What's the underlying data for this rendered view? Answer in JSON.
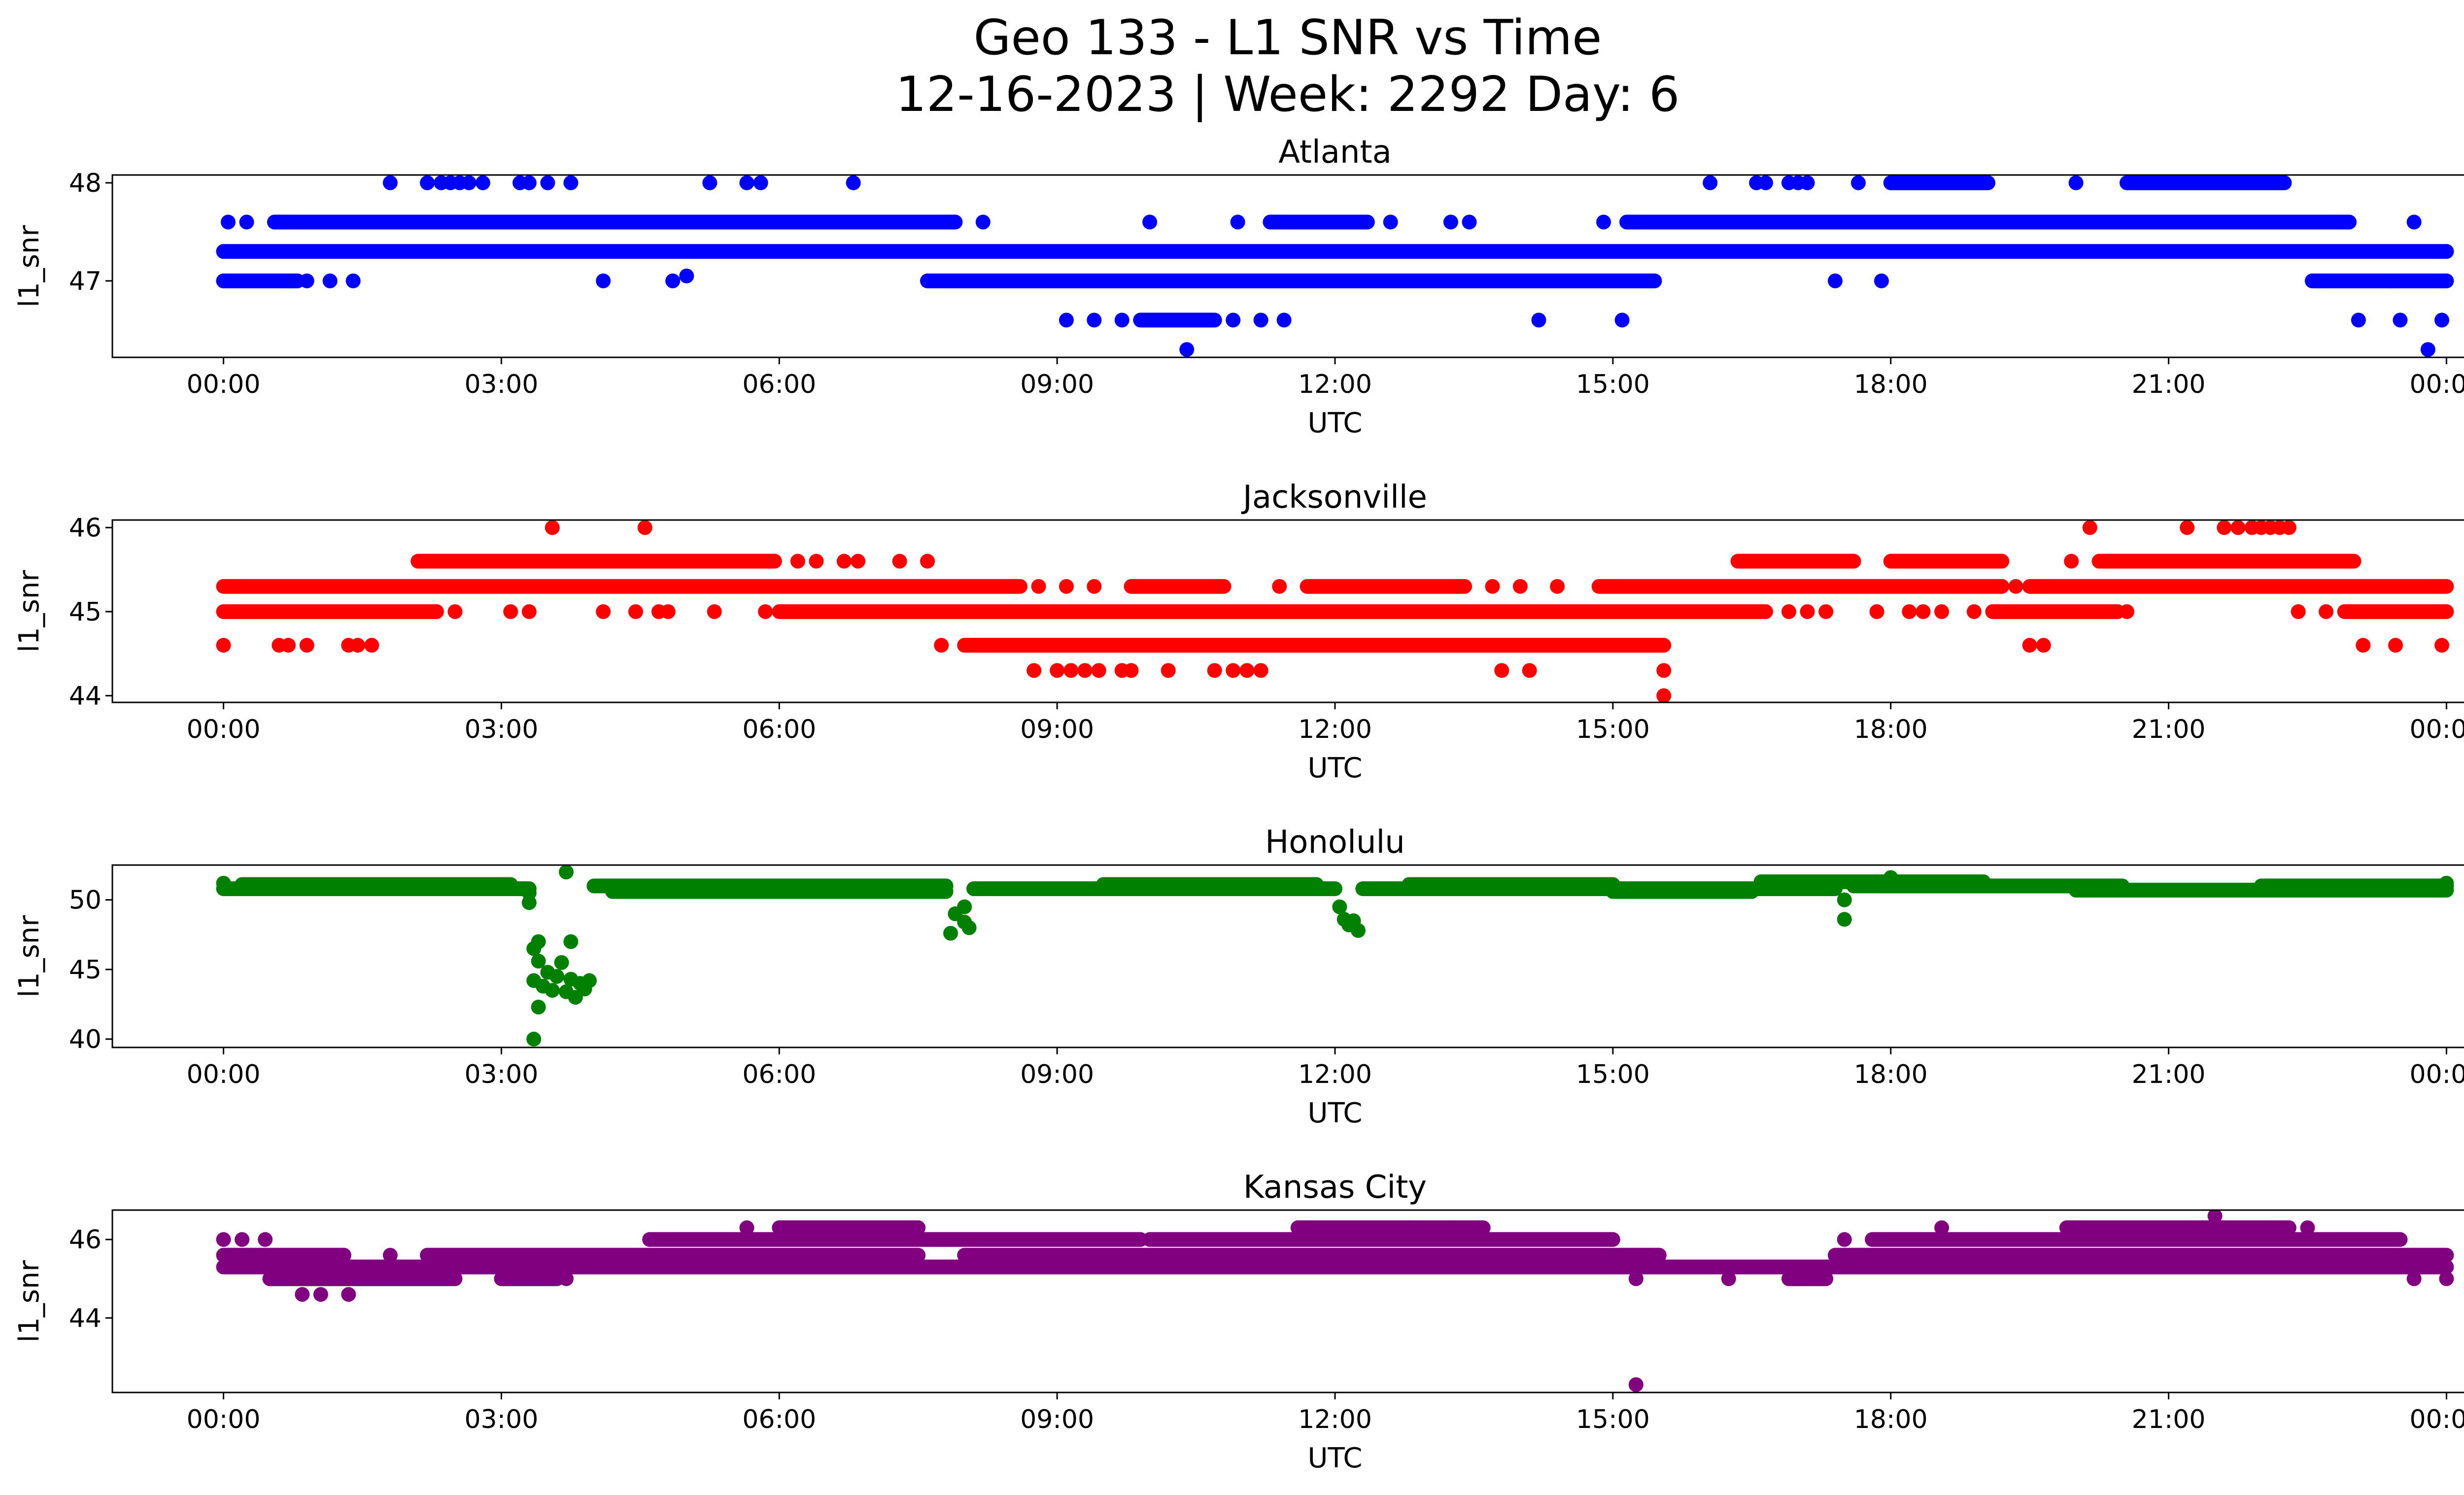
{
  "figure": {
    "title_line1": "Geo 133 - L1 SNR vs Time",
    "title_line2": "12-16-2023 | Week: 2292 Day: 6"
  },
  "chart_data": [
    {
      "type": "scatter",
      "title": "Atlanta",
      "xlabel": "UTC",
      "ylabel": "l1_snr",
      "color": "#0000ff",
      "xlim_hours": [
        -1.2,
        25.2
      ],
      "ylim": [
        46.22,
        48.08
      ],
      "xticks": [
        "00:00",
        "03:00",
        "06:00",
        "09:00",
        "12:00",
        "15:00",
        "18:00",
        "21:00",
        "00:00"
      ],
      "yticks": [
        {
          "value": 47,
          "label": "47"
        },
        {
          "value": 48,
          "label": "48"
        }
      ],
      "points": [
        {
          "x": 0.0,
          "y": 47.3
        },
        {
          "x": 24.0,
          "y": 47.3
        },
        {
          "x": 0.0,
          "y": 47.0
        },
        {
          "x": 0.9,
          "y": 47.0
        },
        {
          "x": 1.15,
          "y": 47.0
        },
        {
          "x": 1.4,
          "y": 47.0
        },
        {
          "x": 4.1,
          "y": 47.0
        },
        {
          "x": 4.85,
          "y": 47.0
        },
        {
          "x": 5.0,
          "y": 47.05
        },
        {
          "x": 17.4,
          "y": 47.0
        },
        {
          "x": 17.9,
          "y": 47.0
        },
        {
          "x": 23.4,
          "y": 47.0
        },
        {
          "x": 0.05,
          "y": 47.6
        },
        {
          "x": 0.25,
          "y": 47.6
        },
        {
          "x": 8.2,
          "y": 47.6
        },
        {
          "x": 10.0,
          "y": 47.6
        },
        {
          "x": 10.95,
          "y": 47.6
        },
        {
          "x": 12.6,
          "y": 47.6
        },
        {
          "x": 13.25,
          "y": 47.6
        },
        {
          "x": 13.45,
          "y": 47.6
        },
        {
          "x": 14.9,
          "y": 47.6
        },
        {
          "x": 23.65,
          "y": 47.6
        },
        {
          "x": 1.8,
          "y": 48.0
        },
        {
          "x": 2.2,
          "y": 48.0
        },
        {
          "x": 2.35,
          "y": 48.0
        },
        {
          "x": 2.45,
          "y": 48.0
        },
        {
          "x": 2.55,
          "y": 48.0
        },
        {
          "x": 2.65,
          "y": 48.0
        },
        {
          "x": 2.8,
          "y": 48.0
        },
        {
          "x": 3.2,
          "y": 48.0
        },
        {
          "x": 3.3,
          "y": 48.0
        },
        {
          "x": 3.5,
          "y": 48.0
        },
        {
          "x": 3.75,
          "y": 48.0
        },
        {
          "x": 5.25,
          "y": 48.0
        },
        {
          "x": 5.65,
          "y": 48.0
        },
        {
          "x": 5.8,
          "y": 48.0
        },
        {
          "x": 6.8,
          "y": 48.0
        },
        {
          "x": 16.05,
          "y": 48.0
        },
        {
          "x": 16.55,
          "y": 48.0
        },
        {
          "x": 16.65,
          "y": 48.0
        },
        {
          "x": 16.9,
          "y": 48.0
        },
        {
          "x": 17.0,
          "y": 48.0
        },
        {
          "x": 17.1,
          "y": 48.0
        },
        {
          "x": 17.65,
          "y": 48.0
        },
        {
          "x": 20.0,
          "y": 48.0
        },
        {
          "x": 9.1,
          "y": 46.6
        },
        {
          "x": 9.4,
          "y": 46.6
        },
        {
          "x": 9.7,
          "y": 46.6
        },
        {
          "x": 10.9,
          "y": 46.6
        },
        {
          "x": 11.2,
          "y": 46.6
        },
        {
          "x": 11.45,
          "y": 46.6
        },
        {
          "x": 14.2,
          "y": 46.6
        },
        {
          "x": 15.1,
          "y": 46.6
        },
        {
          "x": 23.05,
          "y": 46.6
        },
        {
          "x": 23.5,
          "y": 46.6
        },
        {
          "x": 23.95,
          "y": 46.6
        },
        {
          "x": 10.4,
          "y": 46.3
        },
        {
          "x": 23.8,
          "y": 46.3
        }
      ],
      "runs": [
        {
          "y": 47.3,
          "x0": 0.0,
          "x1": 24.0
        },
        {
          "y": 47.0,
          "x0": 0.0,
          "x1": 0.8
        },
        {
          "y": 47.0,
          "x0": 7.6,
          "x1": 15.45
        },
        {
          "y": 47.0,
          "x0": 22.55,
          "x1": 24.0
        },
        {
          "y": 47.6,
          "x0": 0.55,
          "x1": 7.9
        },
        {
          "y": 47.6,
          "x0": 11.3,
          "x1": 12.35
        },
        {
          "y": 47.6,
          "x0": 15.15,
          "x1": 22.95
        },
        {
          "y": 48.0,
          "x0": 18.0,
          "x1": 19.05
        },
        {
          "y": 48.0,
          "x0": 20.55,
          "x1": 22.25
        },
        {
          "y": 46.6,
          "x0": 9.9,
          "x1": 10.7
        }
      ]
    },
    {
      "type": "scatter",
      "title": "Jacksonville",
      "xlabel": "UTC",
      "ylabel": "l1_snr",
      "color": "#ff0000",
      "xlim_hours": [
        -1.2,
        25.2
      ],
      "ylim": [
        43.92,
        46.09
      ],
      "xticks": [
        "00:00",
        "03:00",
        "06:00",
        "09:00",
        "12:00",
        "15:00",
        "18:00",
        "21:00",
        "00:00"
      ],
      "yticks": [
        {
          "value": 44,
          "label": "44"
        },
        {
          "value": 45,
          "label": "45"
        },
        {
          "value": 46,
          "label": "46"
        }
      ],
      "points": [
        {
          "x": 0.0,
          "y": 44.6
        },
        {
          "x": 0.6,
          "y": 44.6
        },
        {
          "x": 0.7,
          "y": 44.6
        },
        {
          "x": 0.9,
          "y": 44.6
        },
        {
          "x": 1.35,
          "y": 44.6
        },
        {
          "x": 1.45,
          "y": 44.6
        },
        {
          "x": 1.6,
          "y": 44.6
        },
        {
          "x": 7.75,
          "y": 44.6
        },
        {
          "x": 19.5,
          "y": 44.6
        },
        {
          "x": 19.65,
          "y": 44.6
        },
        {
          "x": 23.1,
          "y": 44.6
        },
        {
          "x": 23.45,
          "y": 44.6
        },
        {
          "x": 23.95,
          "y": 44.6
        },
        {
          "x": 8.75,
          "y": 44.3
        },
        {
          "x": 9.0,
          "y": 44.3
        },
        {
          "x": 9.15,
          "y": 44.3
        },
        {
          "x": 9.3,
          "y": 44.3
        },
        {
          "x": 9.45,
          "y": 44.3
        },
        {
          "x": 9.7,
          "y": 44.3
        },
        {
          "x": 9.8,
          "y": 44.3
        },
        {
          "x": 10.2,
          "y": 44.3
        },
        {
          "x": 10.7,
          "y": 44.3
        },
        {
          "x": 10.9,
          "y": 44.3
        },
        {
          "x": 11.05,
          "y": 44.3
        },
        {
          "x": 11.2,
          "y": 44.3
        },
        {
          "x": 13.8,
          "y": 44.3
        },
        {
          "x": 14.1,
          "y": 44.3
        },
        {
          "x": 15.55,
          "y": 44.3
        },
        {
          "x": 15.55,
          "y": 44.0
        },
        {
          "x": 3.55,
          "y": 46.0
        },
        {
          "x": 4.55,
          "y": 46.0
        },
        {
          "x": 20.15,
          "y": 46.0
        },
        {
          "x": 21.2,
          "y": 46.0
        },
        {
          "x": 21.6,
          "y": 46.0
        },
        {
          "x": 21.75,
          "y": 46.0
        },
        {
          "x": 21.9,
          "y": 46.0
        },
        {
          "x": 22.0,
          "y": 46.0
        },
        {
          "x": 22.1,
          "y": 46.0
        },
        {
          "x": 22.2,
          "y": 46.0
        },
        {
          "x": 22.3,
          "y": 46.0
        },
        {
          "x": 2.5,
          "y": 45.0
        },
        {
          "x": 3.1,
          "y": 45.0
        },
        {
          "x": 3.3,
          "y": 45.0
        },
        {
          "x": 4.1,
          "y": 45.0
        },
        {
          "x": 4.45,
          "y": 45.0
        },
        {
          "x": 4.7,
          "y": 45.0
        },
        {
          "x": 4.8,
          "y": 45.0
        },
        {
          "x": 5.3,
          "y": 45.0
        },
        {
          "x": 5.85,
          "y": 45.0
        },
        {
          "x": 16.9,
          "y": 45.0
        },
        {
          "x": 17.1,
          "y": 45.0
        },
        {
          "x": 17.3,
          "y": 45.0
        },
        {
          "x": 17.85,
          "y": 45.0
        },
        {
          "x": 18.2,
          "y": 45.0
        },
        {
          "x": 18.35,
          "y": 45.0
        },
        {
          "x": 18.55,
          "y": 45.0
        },
        {
          "x": 18.9,
          "y": 45.0
        },
        {
          "x": 20.55,
          "y": 45.0
        },
        {
          "x": 22.4,
          "y": 45.0
        },
        {
          "x": 22.7,
          "y": 45.0
        },
        {
          "x": 6.2,
          "y": 45.6
        },
        {
          "x": 6.4,
          "y": 45.6
        },
        {
          "x": 6.7,
          "y": 45.6
        },
        {
          "x": 6.85,
          "y": 45.6
        },
        {
          "x": 7.3,
          "y": 45.6
        },
        {
          "x": 7.6,
          "y": 45.6
        },
        {
          "x": 19.95,
          "y": 45.6
        },
        {
          "x": 8.8,
          "y": 45.3
        },
        {
          "x": 9.1,
          "y": 45.3
        },
        {
          "x": 9.4,
          "y": 45.3
        },
        {
          "x": 11.4,
          "y": 45.3
        },
        {
          "x": 13.7,
          "y": 45.3
        },
        {
          "x": 14.0,
          "y": 45.3
        },
        {
          "x": 14.4,
          "y": 45.3
        },
        {
          "x": 19.35,
          "y": 45.3
        }
      ],
      "runs": [
        {
          "y": 45.3,
          "x0": 0.0,
          "x1": 8.6
        },
        {
          "y": 45.3,
          "x0": 9.8,
          "x1": 10.8
        },
        {
          "y": 45.3,
          "x0": 11.7,
          "x1": 13.4
        },
        {
          "y": 45.3,
          "x0": 14.85,
          "x1": 19.2
        },
        {
          "y": 45.3,
          "x0": 19.5,
          "x1": 24.0
        },
        {
          "y": 45.0,
          "x0": 0.0,
          "x1": 2.3
        },
        {
          "y": 45.0,
          "x0": 6.0,
          "x1": 16.65
        },
        {
          "y": 45.0,
          "x0": 19.1,
          "x1": 20.45
        },
        {
          "y": 45.0,
          "x0": 22.9,
          "x1": 24.0
        },
        {
          "y": 45.6,
          "x0": 2.1,
          "x1": 5.95
        },
        {
          "y": 45.6,
          "x0": 16.35,
          "x1": 17.6
        },
        {
          "y": 45.6,
          "x0": 18.0,
          "x1": 19.2
        },
        {
          "y": 45.6,
          "x0": 20.25,
          "x1": 23.0
        },
        {
          "y": 44.6,
          "x0": 8.0,
          "x1": 15.55
        }
      ]
    },
    {
      "type": "scatter",
      "title": "Honolulu",
      "xlabel": "UTC",
      "ylabel": "l1_snr",
      "color": "#008000",
      "xlim_hours": [
        -1.2,
        25.2
      ],
      "ylim": [
        39.4,
        52.5
      ],
      "xticks": [
        "00:00",
        "03:00",
        "06:00",
        "09:00",
        "12:00",
        "15:00",
        "18:00",
        "21:00",
        "00:00"
      ],
      "yticks": [
        {
          "value": 40,
          "label": "40"
        },
        {
          "value": 45,
          "label": "45"
        },
        {
          "value": 50,
          "label": "50"
        }
      ],
      "points": [
        {
          "x": 3.35,
          "y": 40.0
        },
        {
          "x": 3.4,
          "y": 42.3
        },
        {
          "x": 3.35,
          "y": 44.2
        },
        {
          "x": 3.4,
          "y": 45.6
        },
        {
          "x": 3.35,
          "y": 46.5
        },
        {
          "x": 3.4,
          "y": 47.0
        },
        {
          "x": 3.45,
          "y": 43.8
        },
        {
          "x": 3.5,
          "y": 44.8
        },
        {
          "x": 3.55,
          "y": 43.5
        },
        {
          "x": 3.6,
          "y": 44.5
        },
        {
          "x": 3.65,
          "y": 45.5
        },
        {
          "x": 3.7,
          "y": 43.4
        },
        {
          "x": 3.75,
          "y": 44.3
        },
        {
          "x": 3.8,
          "y": 43.0
        },
        {
          "x": 3.85,
          "y": 44.0
        },
        {
          "x": 3.9,
          "y": 43.6
        },
        {
          "x": 3.95,
          "y": 44.2
        },
        {
          "x": 3.75,
          "y": 47.0
        },
        {
          "x": 3.7,
          "y": 52.0
        },
        {
          "x": 3.3,
          "y": 49.8
        },
        {
          "x": 3.3,
          "y": 50.5
        },
        {
          "x": 7.85,
          "y": 47.6
        },
        {
          "x": 7.9,
          "y": 49.0
        },
        {
          "x": 8.0,
          "y": 48.4
        },
        {
          "x": 8.05,
          "y": 48.0
        },
        {
          "x": 8.0,
          "y": 49.5
        },
        {
          "x": 12.05,
          "y": 49.5
        },
        {
          "x": 12.1,
          "y": 48.6
        },
        {
          "x": 12.15,
          "y": 48.2
        },
        {
          "x": 12.25,
          "y": 47.8
        },
        {
          "x": 12.2,
          "y": 48.5
        },
        {
          "x": 17.5,
          "y": 48.6
        },
        {
          "x": 17.5,
          "y": 50.0
        },
        {
          "x": 0.0,
          "y": 51.2
        },
        {
          "x": 18.0,
          "y": 51.6
        },
        {
          "x": 24.0,
          "y": 51.2
        }
      ],
      "runs": [
        {
          "y": 50.8,
          "x0": 0.0,
          "x1": 3.3
        },
        {
          "y": 51.1,
          "x0": 0.2,
          "x1": 3.1
        },
        {
          "y": 51.0,
          "x0": 4.0,
          "x1": 7.8
        },
        {
          "y": 50.6,
          "x0": 4.2,
          "x1": 7.8
        },
        {
          "y": 50.8,
          "x0": 8.1,
          "x1": 12.0
        },
        {
          "y": 51.1,
          "x0": 9.5,
          "x1": 11.8
        },
        {
          "y": 50.8,
          "x0": 12.3,
          "x1": 17.4
        },
        {
          "y": 51.1,
          "x0": 12.8,
          "x1": 15.0
        },
        {
          "y": 50.6,
          "x0": 15.0,
          "x1": 16.5
        },
        {
          "y": 51.3,
          "x0": 16.6,
          "x1": 19.0
        },
        {
          "y": 51.0,
          "x0": 17.6,
          "x1": 20.5
        },
        {
          "y": 50.7,
          "x0": 20.0,
          "x1": 24.0
        },
        {
          "y": 51.0,
          "x0": 22.0,
          "x1": 24.0
        }
      ]
    },
    {
      "type": "scatter",
      "title": "Kansas City",
      "xlabel": "UTC",
      "ylabel": "l1_snr",
      "color": "#800080",
      "xlim_hours": [
        -1.2,
        25.2
      ],
      "ylim": [
        42.1,
        46.75
      ],
      "xticks": [
        "00:00",
        "03:00",
        "06:00",
        "09:00",
        "12:00",
        "15:00",
        "18:00",
        "21:00",
        "00:00"
      ],
      "yticks": [
        {
          "value": 44,
          "label": "44"
        },
        {
          "value": 46,
          "label": "46"
        }
      ],
      "points": [
        {
          "x": 0.0,
          "y": 46.0
        },
        {
          "x": 0.2,
          "y": 46.0
        },
        {
          "x": 0.45,
          "y": 46.0
        },
        {
          "x": 0.85,
          "y": 44.6
        },
        {
          "x": 1.05,
          "y": 44.6
        },
        {
          "x": 1.35,
          "y": 44.6
        },
        {
          "x": 1.8,
          "y": 45.6
        },
        {
          "x": 3.7,
          "y": 45.0
        },
        {
          "x": 5.65,
          "y": 46.3
        },
        {
          "x": 6.05,
          "y": 46.3
        },
        {
          "x": 6.2,
          "y": 46.3
        },
        {
          "x": 7.3,
          "y": 45.6
        },
        {
          "x": 15.25,
          "y": 42.3
        },
        {
          "x": 15.25,
          "y": 45.0
        },
        {
          "x": 16.25,
          "y": 45.0
        },
        {
          "x": 17.0,
          "y": 45.0
        },
        {
          "x": 21.5,
          "y": 46.6
        },
        {
          "x": 24.0,
          "y": 45.0
        },
        {
          "x": 23.65,
          "y": 45.0
        },
        {
          "x": 22.5,
          "y": 46.3
        },
        {
          "x": 18.55,
          "y": 46.3
        },
        {
          "x": 17.5,
          "y": 46.0
        },
        {
          "x": 12.8,
          "y": 46.3
        },
        {
          "x": 13.3,
          "y": 46.3
        }
      ],
      "runs": [
        {
          "y": 45.3,
          "x0": 0.0,
          "x1": 24.0
        },
        {
          "y": 45.6,
          "x0": 0.0,
          "x1": 1.3
        },
        {
          "y": 45.6,
          "x0": 2.2,
          "x1": 7.5
        },
        {
          "y": 45.6,
          "x0": 8.0,
          "x1": 15.5
        },
        {
          "y": 45.6,
          "x0": 17.4,
          "x1": 24.0
        },
        {
          "y": 45.0,
          "x0": 0.5,
          "x1": 2.5
        },
        {
          "y": 45.0,
          "x0": 3.0,
          "x1": 3.6
        },
        {
          "y": 45.0,
          "x0": 16.9,
          "x1": 17.3
        },
        {
          "y": 46.0,
          "x0": 4.6,
          "x1": 9.9
        },
        {
          "y": 46.0,
          "x0": 10.0,
          "x1": 15.0
        },
        {
          "y": 46.0,
          "x0": 17.8,
          "x1": 23.5
        },
        {
          "y": 46.3,
          "x0": 6.0,
          "x1": 7.5
        },
        {
          "y": 46.3,
          "x0": 11.6,
          "x1": 13.6
        },
        {
          "y": 46.3,
          "x0": 19.9,
          "x1": 22.3
        }
      ]
    }
  ]
}
